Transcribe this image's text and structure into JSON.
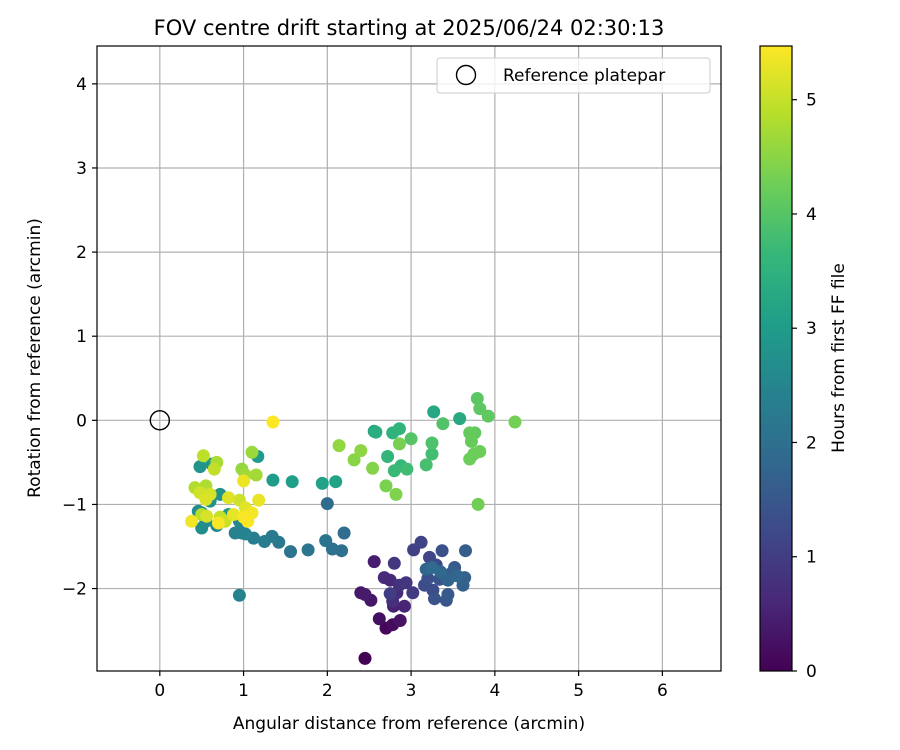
{
  "chart_data": {
    "type": "scatter",
    "title": "FOV centre drift starting at 2025/06/24 02:30:13",
    "xlabel": "Angular distance from reference (arcmin)",
    "ylabel": "Rotation from reference (arcmin)",
    "xlim": [
      -0.75,
      6.7
    ],
    "ylim": [
      -2.98,
      4.45
    ],
    "xticks": [
      0,
      1,
      2,
      3,
      4,
      5,
      6
    ],
    "yticks": [
      -2,
      -1,
      0,
      1,
      2,
      3,
      4
    ],
    "grid": true,
    "legend": {
      "placement": "top-right",
      "entries": [
        "Reference platepar"
      ]
    },
    "reference_point": {
      "x": 0,
      "y": 0
    },
    "colorbar": {
      "label": "Hours from first FF file",
      "min": 0,
      "max": 5.47,
      "ticks": [
        0,
        1,
        2,
        3,
        4,
        5
      ],
      "colormap": "viridis"
    },
    "series": [
      {
        "points": [
          [
            2.45,
            -2.83,
            0.02
          ],
          [
            2.7,
            -2.47,
            0.08
          ],
          [
            2.78,
            -2.43,
            0.15
          ],
          [
            2.62,
            -2.36,
            0.22
          ],
          [
            2.87,
            -2.38,
            0.28
          ],
          [
            2.52,
            -2.14,
            0.32
          ],
          [
            2.4,
            -2.05,
            0.36
          ],
          [
            2.45,
            -2.07,
            0.4
          ],
          [
            2.56,
            -1.68,
            0.45
          ],
          [
            2.79,
            -2.21,
            0.5
          ],
          [
            2.92,
            -2.21,
            0.55
          ],
          [
            2.75,
            -1.9,
            0.6
          ],
          [
            2.68,
            -1.87,
            0.65
          ],
          [
            2.83,
            -2.05,
            0.7
          ],
          [
            2.78,
            -2.15,
            0.75
          ],
          [
            2.86,
            -1.96,
            0.8
          ],
          [
            2.94,
            -1.93,
            0.85
          ],
          [
            2.8,
            -1.7,
            0.9
          ],
          [
            3.02,
            -2.05,
            0.95
          ],
          [
            2.75,
            -2.06,
            1.0
          ],
          [
            3.03,
            -1.54,
            1.05
          ],
          [
            3.12,
            -1.45,
            1.1
          ],
          [
            3.22,
            -1.63,
            1.15
          ],
          [
            3.3,
            -1.72,
            1.2
          ],
          [
            3.16,
            -1.96,
            1.25
          ],
          [
            3.26,
            -2.02,
            1.3
          ],
          [
            3.2,
            -1.88,
            1.35
          ],
          [
            3.37,
            -1.55,
            1.38
          ],
          [
            3.28,
            -2.12,
            1.41
          ],
          [
            3.34,
            -1.89,
            1.44
          ],
          [
            3.42,
            -2.14,
            1.47
          ],
          [
            3.38,
            -1.84,
            1.5
          ],
          [
            3.44,
            -2.07,
            1.53
          ],
          [
            3.52,
            -1.75,
            1.56
          ],
          [
            3.48,
            -1.82,
            1.6
          ],
          [
            3.65,
            -1.55,
            1.63
          ],
          [
            3.62,
            -1.96,
            1.66
          ],
          [
            3.64,
            -1.87,
            1.7
          ],
          [
            3.44,
            -1.9,
            1.73
          ],
          [
            3.18,
            -1.77,
            1.76
          ],
          [
            3.55,
            -1.85,
            1.8
          ],
          [
            3.35,
            -1.8,
            1.84
          ],
          [
            3.25,
            -1.75,
            1.88
          ],
          [
            2.0,
            -0.99,
            1.92
          ],
          [
            2.2,
            -1.34,
            1.96
          ],
          [
            2.17,
            -1.55,
            2.0
          ],
          [
            2.06,
            -1.53,
            2.04
          ],
          [
            1.98,
            -1.43,
            2.08
          ],
          [
            1.77,
            -1.54,
            2.12
          ],
          [
            1.56,
            -1.56,
            2.16
          ],
          [
            1.42,
            -1.45,
            2.2
          ],
          [
            1.34,
            -1.38,
            2.24
          ],
          [
            1.25,
            -1.44,
            2.28
          ],
          [
            1.12,
            -1.4,
            2.32
          ],
          [
            0.98,
            -1.34,
            2.36
          ],
          [
            0.9,
            -1.34,
            2.4
          ],
          [
            0.95,
            -2.08,
            2.44
          ],
          [
            1.02,
            -1.35,
            2.48
          ],
          [
            0.95,
            -1.2,
            2.52
          ],
          [
            0.68,
            -1.25,
            2.56
          ],
          [
            0.5,
            -1.1,
            2.6
          ],
          [
            0.46,
            -1.08,
            2.64
          ],
          [
            0.5,
            -1.28,
            2.68
          ],
          [
            0.55,
            -1.2,
            2.72
          ],
          [
            0.6,
            -0.96,
            2.76
          ],
          [
            0.72,
            -0.88,
            2.8
          ],
          [
            0.48,
            -0.55,
            2.84
          ],
          [
            0.62,
            -0.52,
            2.88
          ],
          [
            0.82,
            -1.12,
            2.92
          ],
          [
            1.17,
            -0.43,
            2.96
          ],
          [
            1.35,
            -0.71,
            3.0
          ],
          [
            1.58,
            -0.73,
            3.05
          ],
          [
            1.94,
            -0.75,
            3.1
          ],
          [
            2.1,
            -0.73,
            3.15
          ],
          [
            2.56,
            -0.13,
            3.2
          ],
          [
            3.27,
            0.1,
            3.25
          ],
          [
            3.58,
            0.02,
            3.3
          ],
          [
            2.58,
            -0.14,
            3.4
          ],
          [
            2.78,
            -0.15,
            3.5
          ],
          [
            2.86,
            -0.1,
            3.55
          ],
          [
            2.72,
            -0.43,
            3.6
          ],
          [
            2.88,
            -0.54,
            3.65
          ],
          [
            2.8,
            -0.6,
            3.7
          ],
          [
            2.95,
            -0.58,
            3.75
          ],
          [
            3.25,
            -0.4,
            3.8
          ],
          [
            3.18,
            -0.53,
            3.85
          ],
          [
            3.25,
            -0.27,
            3.9
          ],
          [
            3.38,
            -0.04,
            3.95
          ],
          [
            3.0,
            -0.22,
            4.0
          ],
          [
            3.79,
            0.26,
            4.05
          ],
          [
            3.82,
            0.14,
            4.08
          ],
          [
            3.92,
            0.05,
            4.1
          ],
          [
            3.76,
            -0.15,
            4.12
          ],
          [
            3.7,
            -0.15,
            4.15
          ],
          [
            3.72,
            -0.25,
            4.18
          ],
          [
            3.75,
            -0.4,
            4.2
          ],
          [
            3.7,
            -0.46,
            4.22
          ],
          [
            3.82,
            -0.37,
            4.24
          ],
          [
            3.8,
            -1.0,
            4.27
          ],
          [
            4.24,
            -0.02,
            4.3
          ],
          [
            2.86,
            -0.28,
            4.33
          ],
          [
            2.7,
            -0.78,
            4.36
          ],
          [
            2.82,
            -0.88,
            4.4
          ],
          [
            2.54,
            -0.57,
            4.44
          ],
          [
            2.32,
            -0.47,
            4.48
          ],
          [
            2.4,
            -0.36,
            4.52
          ],
          [
            2.14,
            -0.3,
            4.56
          ],
          [
            0.98,
            -0.58,
            4.6
          ],
          [
            1.1,
            -0.38,
            4.64
          ],
          [
            1.02,
            -0.65,
            4.68
          ],
          [
            1.15,
            -0.65,
            4.72
          ],
          [
            0.68,
            -0.5,
            4.76
          ],
          [
            0.55,
            -0.78,
            4.8
          ],
          [
            0.42,
            -0.8,
            4.84
          ],
          [
            0.5,
            -1.12,
            4.88
          ],
          [
            0.52,
            -0.42,
            4.92
          ],
          [
            0.65,
            -0.58,
            4.96
          ],
          [
            0.72,
            -1.15,
            5.0
          ],
          [
            0.78,
            -1.2,
            5.03
          ],
          [
            0.95,
            -0.95,
            5.06
          ],
          [
            0.48,
            -0.86,
            5.09
          ],
          [
            0.6,
            -0.88,
            5.12
          ],
          [
            0.56,
            -1.14,
            5.15
          ],
          [
            0.55,
            -0.94,
            5.18
          ],
          [
            0.82,
            -0.92,
            5.21
          ],
          [
            1.02,
            -1.04,
            5.24
          ],
          [
            0.88,
            -1.12,
            5.27
          ],
          [
            1.18,
            -0.95,
            5.3
          ],
          [
            1.0,
            -0.72,
            5.33
          ],
          [
            0.38,
            -1.2,
            5.36
          ],
          [
            1.1,
            -1.1,
            5.38
          ],
          [
            1.0,
            -1.15,
            5.4
          ],
          [
            0.7,
            -1.22,
            5.42
          ],
          [
            1.05,
            -1.2,
            5.44
          ],
          [
            1.35,
            -0.02,
            5.47
          ]
        ]
      }
    ]
  }
}
